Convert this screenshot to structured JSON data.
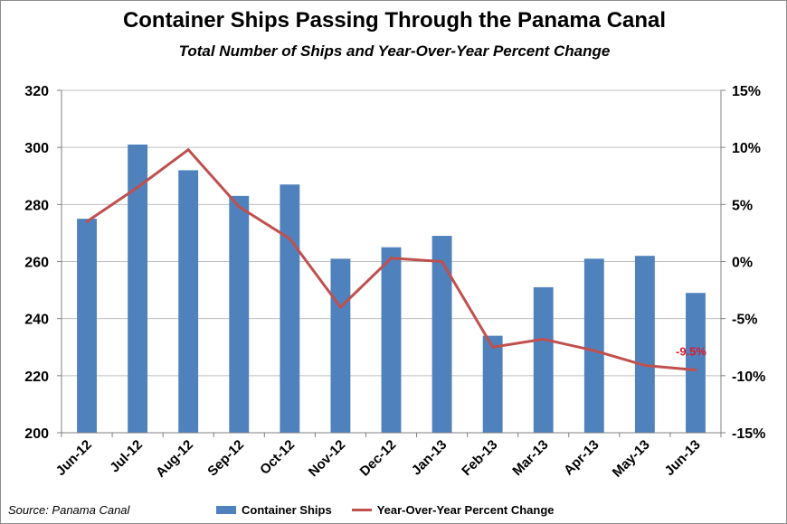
{
  "title": "Container Ships Passing Through the Panama Canal",
  "subtitle": "Total Number of Ships and Year-Over-Year  Percent Change",
  "source": "Source: Panama Canal",
  "colors": {
    "bars": "#4f81bd",
    "line": "#c0504d",
    "label": "#e0192b"
  },
  "chart_data": {
    "type": "bar",
    "categories": [
      "Jun-12",
      "Jul-12",
      "Aug-12",
      "Sep-12",
      "Oct-12",
      "Nov-12",
      "Dec-12",
      "Jan-13",
      "Feb-13",
      "Mar-13",
      "Apr-13",
      "May-13",
      "Jun-13"
    ],
    "series": [
      {
        "name": "Container Ships",
        "type": "bar",
        "axis": "left",
        "values": [
          275,
          301,
          292,
          283,
          287,
          261,
          265,
          269,
          234,
          251,
          261,
          262,
          249
        ]
      },
      {
        "name": "Year-Over-Year Percent Change",
        "type": "line",
        "axis": "right",
        "values": [
          3.5,
          6.5,
          9.8,
          4.8,
          2.0,
          -4.0,
          0.3,
          0.0,
          -7.5,
          -6.8,
          -7.8,
          -9.1,
          -9.5
        ]
      }
    ],
    "y_left": {
      "min": 200,
      "max": 320,
      "ticks": [
        "200",
        "220",
        "240",
        "260",
        "280",
        "300",
        "320"
      ]
    },
    "y_right": {
      "min": -15,
      "max": 15,
      "ticks": [
        "-15%",
        "-10%",
        "-5%",
        "0%",
        "5%",
        "10%",
        "15%"
      ]
    },
    "annotation": {
      "text": "-9.5%",
      "series": 1,
      "index": 12
    },
    "grid": true,
    "legend": "bottom"
  }
}
